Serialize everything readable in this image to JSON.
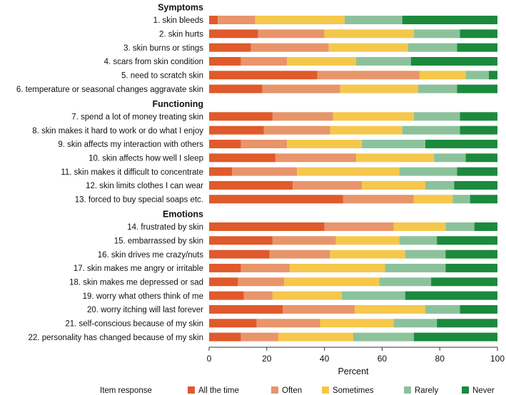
{
  "chart_data": {
    "type": "bar",
    "orientation": "horizontal",
    "stacked": true,
    "title": "",
    "xlabel": "Percent",
    "ylabel": "",
    "xlim": [
      0,
      100
    ],
    "xticks": [
      0,
      20,
      40,
      60,
      80,
      100
    ],
    "grid": false,
    "legend": {
      "title": "Item response",
      "position": "bottom"
    },
    "series": [
      {
        "name": "All the time",
        "color": "#e05a2b"
      },
      {
        "name": "Often",
        "color": "#e8956b"
      },
      {
        "name": "Sometimes",
        "color": "#f5c84c"
      },
      {
        "name": "Rarely",
        "color": "#8cc29b"
      },
      {
        "name": "Never",
        "color": "#1b8a3c"
      }
    ],
    "groups": [
      {
        "name": "Symptoms",
        "items": [
          {
            "label": "1. skin bleeds",
            "values": [
              3,
              13,
              31,
              20,
              33
            ]
          },
          {
            "label": "2. skin hurts",
            "values": [
              17,
              23,
              31,
              16,
              13
            ]
          },
          {
            "label": "3. skin burns or stings",
            "values": [
              14.5,
              27,
              27.5,
              17,
              14
            ]
          },
          {
            "label": "4. scars from skin condition",
            "values": [
              11,
              16,
              24,
              19,
              30
            ]
          },
          {
            "label": "5. need to scratch skin",
            "values": [
              37.5,
              35.5,
              16,
              8,
              3
            ]
          },
          {
            "label": "6. temperature or seasonal changes aggravate skin",
            "values": [
              18.5,
              27,
              27,
              13.5,
              14
            ]
          }
        ]
      },
      {
        "name": "Functioning",
        "items": [
          {
            "label": "7. spend a lot of money treating skin",
            "values": [
              22,
              21,
              28,
              16,
              13
            ]
          },
          {
            "label": "8. skin makes it hard to work or do what I enjoy",
            "values": [
              19,
              23,
              25,
              20,
              13
            ]
          },
          {
            "label": "9. skin affects my interaction with others",
            "values": [
              11,
              16,
              26,
              22,
              25
            ]
          },
          {
            "label": "10. skin affects how well I sleep",
            "values": [
              23,
              28,
              27,
              11,
              11
            ]
          },
          {
            "label": "11. skin makes it difficult to concentrate",
            "values": [
              8,
              22.5,
              35.5,
              20,
              14
            ]
          },
          {
            "label": "12. skin limits clothes I can wear",
            "values": [
              29,
              24,
              22,
              10,
              15
            ]
          },
          {
            "label": "13. forced to buy special soaps etc.",
            "values": [
              46.5,
              24.5,
              13.5,
              6,
              9.5
            ]
          }
        ]
      },
      {
        "name": "Emotions",
        "items": [
          {
            "label": "14. frustrated by skin",
            "values": [
              40,
              24,
              18,
              10,
              8
            ]
          },
          {
            "label": "15. embarrassed by skin",
            "values": [
              22,
              22,
              22,
              13,
              21
            ]
          },
          {
            "label": "16. skin drives me crazy/nuts",
            "values": [
              21,
              21,
              26,
              14,
              18
            ]
          },
          {
            "label": "17. skin makes me angry or irritable",
            "values": [
              11,
              17,
              33,
              21,
              18
            ]
          },
          {
            "label": "18. skin makes me depressed or sad",
            "values": [
              10,
              16,
              33,
              18,
              23
            ]
          },
          {
            "label": "19. worry what others think of me",
            "values": [
              12,
              10,
              24,
              22,
              32
            ]
          },
          {
            "label": "20. worry itching will last forever",
            "values": [
              25.5,
              25,
              24.5,
              12,
              13
            ]
          },
          {
            "label": "21. self-conscious because of my skin",
            "values": [
              16.5,
              22,
              25.5,
              15,
              21
            ]
          },
          {
            "label": "22. personality has changed because of my skin",
            "values": [
              11,
              13,
              26,
              21,
              29
            ]
          }
        ]
      }
    ]
  }
}
